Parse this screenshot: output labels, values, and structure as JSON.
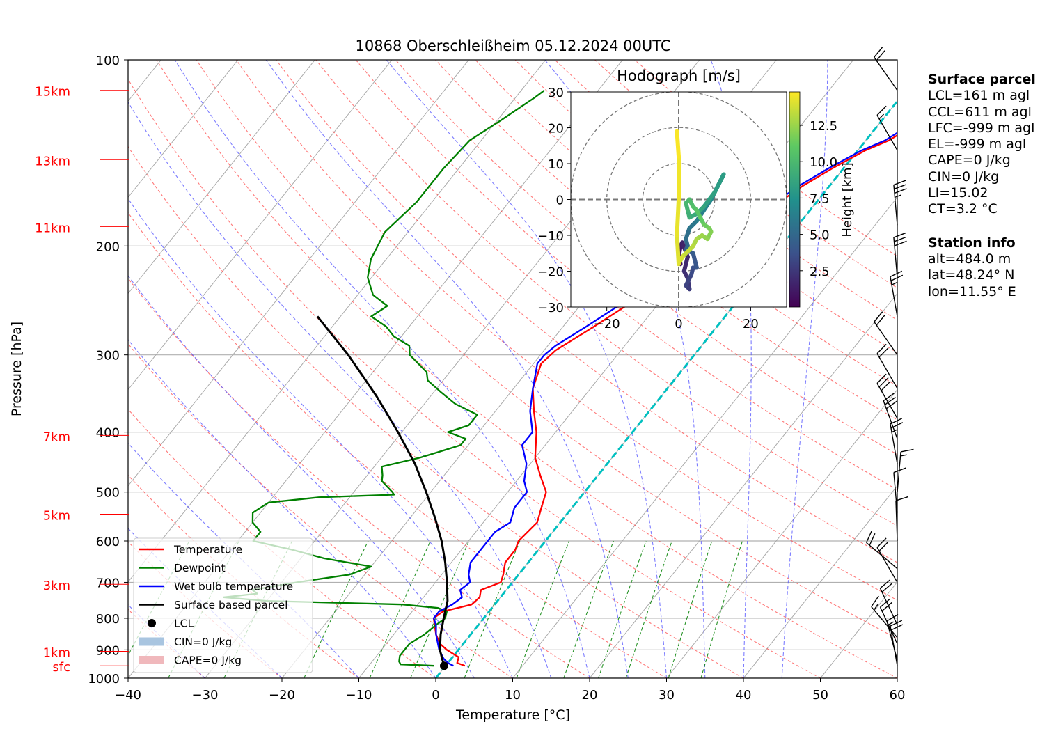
{
  "title": "10868 Oberschleißheim 05.12.2024 00UTC",
  "chart_data": {
    "type": "line",
    "subtype": "skew-T log-P diagram",
    "xlabel": "Temperature [°C]",
    "ylabel": "Pressure [hPa]",
    "xlim": [
      -40,
      60
    ],
    "ylim": [
      1000,
      100
    ],
    "y_scale": "log",
    "grid": true,
    "x_ticks": [
      "−40",
      "−30",
      "−20",
      "−10",
      "0",
      "10",
      "20",
      "30",
      "40",
      "50",
      "60"
    ],
    "y_ticks": [
      {
        "p": 100,
        "label": "100"
      },
      {
        "p": 200,
        "label": "200"
      },
      {
        "p": 300,
        "label": "300"
      },
      {
        "p": 400,
        "label": "400"
      },
      {
        "p": 500,
        "label": "500"
      },
      {
        "p": 600,
        "label": "600"
      },
      {
        "p": 700,
        "label": "700"
      },
      {
        "p": 800,
        "label": "800"
      },
      {
        "p": 900,
        "label": "900"
      },
      {
        "p": 1000,
        "label": "1000"
      }
    ],
    "height_markers": [
      {
        "p": 112,
        "label": "15km"
      },
      {
        "p": 145,
        "label": "13km"
      },
      {
        "p": 186,
        "label": "11km"
      },
      {
        "p": 405,
        "label": "7km"
      },
      {
        "p": 543,
        "label": "5km"
      },
      {
        "p": 705,
        "label": "3km"
      },
      {
        "p": 905,
        "label": "1km"
      },
      {
        "p": 955,
        "label": "sfc"
      }
    ],
    "series": [
      {
        "name": "Temperature",
        "color": "#ff0000",
        "points": [
          [
            955,
            2.5
          ],
          [
            945,
            1.2
          ],
          [
            925,
            0.8
          ],
          [
            900,
            -1.5
          ],
          [
            880,
            -3.0
          ],
          [
            850,
            -4.5
          ],
          [
            800,
            -6.5
          ],
          [
            780,
            -6.0
          ],
          [
            760,
            -3.0
          ],
          [
            740,
            -2.7
          ],
          [
            720,
            -3.3
          ],
          [
            700,
            -1.5
          ],
          [
            680,
            -2.0
          ],
          [
            650,
            -3.0
          ],
          [
            620,
            -3.0
          ],
          [
            600,
            -3.5
          ],
          [
            560,
            -3.0
          ],
          [
            530,
            -4.0
          ],
          [
            500,
            -5.0
          ],
          [
            470,
            -7.5
          ],
          [
            440,
            -10.0
          ],
          [
            400,
            -12.5
          ],
          [
            370,
            -15.0
          ],
          [
            340,
            -17.5
          ],
          [
            310,
            -19.0
          ],
          [
            295,
            -18.5
          ],
          [
            270,
            -16.0
          ],
          [
            250,
            -14.0
          ],
          [
            230,
            -12.0
          ],
          [
            210,
            -10.0
          ],
          [
            190,
            -7.5
          ],
          [
            175,
            -5.5
          ],
          [
            160,
            -3.5
          ],
          [
            150,
            -1.5
          ],
          [
            140,
            1.0
          ],
          [
            135,
            3.0
          ],
          [
            128,
            4.5
          ],
          [
            122,
            5.0
          ],
          [
            118,
            6.0
          ],
          [
            113,
            7.5
          ],
          [
            111,
            8.0
          ]
        ]
      },
      {
        "name": "Dewpoint",
        "color": "#008000",
        "points": [
          [
            955,
            -1.5
          ],
          [
            950,
            -6.0
          ],
          [
            940,
            -6.5
          ],
          [
            920,
            -7.0
          ],
          [
            900,
            -7.0
          ],
          [
            880,
            -7.0
          ],
          [
            850,
            -6.0
          ],
          [
            820,
            -5.5
          ],
          [
            800,
            -5.0
          ],
          [
            780,
            -5.5
          ],
          [
            770,
            -7.0
          ],
          [
            760,
            -12.0
          ],
          [
            750,
            -30.0
          ],
          [
            740,
            -36.0
          ],
          [
            730,
            -32.0
          ],
          [
            720,
            -33.0
          ],
          [
            700,
            -28.0
          ],
          [
            680,
            -22.0
          ],
          [
            660,
            -20.0
          ],
          [
            640,
            -27.0
          ],
          [
            620,
            -32.0
          ],
          [
            600,
            -38.0
          ],
          [
            580,
            -38.0
          ],
          [
            560,
            -40.0
          ],
          [
            540,
            -41.0
          ],
          [
            520,
            -40.0
          ],
          [
            510,
            -34.0
          ],
          [
            505,
            -24.5
          ],
          [
            500,
            -25.0
          ],
          [
            480,
            -27.5
          ],
          [
            470,
            -28.0
          ],
          [
            455,
            -29.0
          ],
          [
            440,
            -25.0
          ],
          [
            430,
            -23.0
          ],
          [
            420,
            -21.0
          ],
          [
            410,
            -21.0
          ],
          [
            400,
            -24.0
          ],
          [
            390,
            -22.0
          ],
          [
            375,
            -22.0
          ],
          [
            360,
            -26.0
          ],
          [
            345,
            -29.0
          ],
          [
            330,
            -32.0
          ],
          [
            320,
            -33.0
          ],
          [
            300,
            -37.0
          ],
          [
            290,
            -38.0
          ],
          [
            280,
            -41.0
          ],
          [
            270,
            -43.0
          ],
          [
            260,
            -46.0
          ],
          [
            250,
            -45.0
          ],
          [
            240,
            -48.0
          ],
          [
            225,
            -50.5
          ],
          [
            210,
            -52.0
          ],
          [
            190,
            -53.0
          ],
          [
            170,
            -52.0
          ],
          [
            150,
            -52.0
          ],
          [
            135,
            -51.5
          ],
          [
            125,
            -49.5
          ],
          [
            115,
            -47.5
          ],
          [
            112,
            -47.0
          ]
        ]
      },
      {
        "name": "Wet bulb temperature",
        "color": "#0000ff",
        "points": [
          [
            955,
            1.0
          ],
          [
            945,
            0.0
          ],
          [
            930,
            -1.0
          ],
          [
            900,
            -2.5
          ],
          [
            850,
            -4.5
          ],
          [
            820,
            -5.5
          ],
          [
            800,
            -6.5
          ],
          [
            780,
            -6.5
          ],
          [
            760,
            -5.5
          ],
          [
            740,
            -5.0
          ],
          [
            720,
            -6.0
          ],
          [
            700,
            -5.5
          ],
          [
            680,
            -6.5
          ],
          [
            650,
            -7.5
          ],
          [
            620,
            -7.5
          ],
          [
            600,
            -7.5
          ],
          [
            580,
            -7.5
          ],
          [
            560,
            -6.5
          ],
          [
            530,
            -7.5
          ],
          [
            500,
            -7.5
          ],
          [
            480,
            -9.0
          ],
          [
            450,
            -10.5
          ],
          [
            420,
            -13.0
          ],
          [
            400,
            -13.0
          ],
          [
            370,
            -15.5
          ],
          [
            340,
            -17.5
          ],
          [
            310,
            -19.5
          ],
          [
            300,
            -19.5
          ],
          [
            290,
            -19.0
          ],
          [
            270,
            -17.0
          ],
          [
            250,
            -15.0
          ],
          [
            230,
            -13.0
          ],
          [
            210,
            -10.5
          ],
          [
            190,
            -8.0
          ],
          [
            175,
            -6.0
          ],
          [
            160,
            -4.0
          ],
          [
            150,
            -2.0
          ],
          [
            140,
            0.5
          ],
          [
            135,
            2.5
          ],
          [
            128,
            4.0
          ],
          [
            122,
            4.5
          ],
          [
            118,
            5.5
          ],
          [
            113,
            7.0
          ],
          [
            111,
            7.5
          ]
        ]
      },
      {
        "name": "Surface based parcel",
        "color": "#000000",
        "points": [
          [
            955,
            -0.2
          ],
          [
            930,
            -1.2
          ],
          [
            900,
            -2.4
          ],
          [
            850,
            -3.9
          ],
          [
            800,
            -5.2
          ],
          [
            750,
            -6.5
          ],
          [
            700,
            -8.5
          ],
          [
            650,
            -10.8
          ],
          [
            600,
            -13.5
          ],
          [
            550,
            -16.8
          ],
          [
            500,
            -20.6
          ],
          [
            450,
            -25.0
          ],
          [
            400,
            -30.5
          ],
          [
            350,
            -37.0
          ],
          [
            300,
            -45.0
          ],
          [
            260,
            -53.0
          ]
        ]
      }
    ],
    "lcl": {
      "name": "LCL",
      "p": 955,
      "t": -0.2
    },
    "legend": {
      "position": "lower-left",
      "entries": [
        {
          "label": "Temperature",
          "color": "#ff0000",
          "kind": "line"
        },
        {
          "label": "Dewpoint",
          "color": "#008000",
          "kind": "line"
        },
        {
          "label": "Wet bulb temperature",
          "color": "#0000ff",
          "kind": "line"
        },
        {
          "label": "Surface based parcel",
          "color": "#000000",
          "kind": "line"
        },
        {
          "label": "LCL",
          "color": "#000000",
          "kind": "dot"
        },
        {
          "label": "CIN=0 J/kg",
          "color": "#a9c5e0",
          "kind": "patch"
        },
        {
          "label": "CAPE=0 J/kg",
          "color": "#f0b8bc",
          "kind": "patch"
        }
      ]
    },
    "wind_barbs": [
      {
        "p": 955,
        "dir": 350,
        "kts": 20
      },
      {
        "p": 935,
        "dir": 345,
        "kts": 18
      },
      {
        "p": 880,
        "dir": 335,
        "kts": 20
      },
      {
        "p": 860,
        "dir": 320,
        "kts": 18
      },
      {
        "p": 820,
        "dir": 335,
        "kts": 20
      },
      {
        "p": 700,
        "dir": 330,
        "kts": 20
      },
      {
        "p": 665,
        "dir": 310,
        "kts": 20
      },
      {
        "p": 600,
        "dir": 358,
        "kts": 10
      },
      {
        "p": 540,
        "dir": 355,
        "kts": 10
      },
      {
        "p": 500,
        "dir": 5,
        "kts": 15
      },
      {
        "p": 450,
        "dir": 350,
        "kts": 25
      },
      {
        "p": 410,
        "dir": 340,
        "kts": 30
      },
      {
        "p": 380,
        "dir": 330,
        "kts": 30
      },
      {
        "p": 340,
        "dir": 330,
        "kts": 20
      },
      {
        "p": 300,
        "dir": 325,
        "kts": 20
      },
      {
        "p": 260,
        "dir": 350,
        "kts": 25
      },
      {
        "p": 225,
        "dir": 355,
        "kts": 30
      },
      {
        "p": 185,
        "dir": 355,
        "kts": 35
      },
      {
        "p": 140,
        "dir": 330,
        "kts": 15
      },
      {
        "p": 112,
        "dir": 325,
        "kts": 20
      }
    ],
    "hodograph": {
      "title": "Hodograph [m/s]",
      "xlim": [
        -30,
        30
      ],
      "ylim": [
        -30,
        30
      ],
      "x_ticks": [
        "−20",
        "0",
        "20"
      ],
      "y_ticks": [
        "30",
        "20",
        "10",
        "0",
        "−10",
        "−20",
        "−30"
      ],
      "rings": [
        10,
        20,
        30
      ],
      "colorbar": {
        "label": "Height [km]",
        "ticks": [
          "2.5",
          "5.0",
          "7.5",
          "10.0",
          "12.5"
        ],
        "range": [
          0,
          14.8
        ]
      },
      "points": [
        [
          0.5,
          -18,
          0.3
        ],
        [
          0.0,
          -16,
          0.6
        ],
        [
          0.5,
          -13,
          0.9
        ],
        [
          1.0,
          -12,
          1.2
        ],
        [
          2.5,
          -16,
          1.5
        ],
        [
          1.5,
          -20,
          1.8
        ],
        [
          2.5,
          -22,
          2.1
        ],
        [
          3.0,
          -25,
          2.4
        ],
        [
          2.0,
          -24,
          2.7
        ],
        [
          3.5,
          -21,
          3.0
        ],
        [
          4.0,
          -19,
          3.4
        ],
        [
          5.0,
          -19,
          3.7
        ],
        [
          4.0,
          -15,
          4.0
        ],
        [
          2.0,
          -14,
          4.3
        ],
        [
          2.5,
          -13,
          4.6
        ],
        [
          2.0,
          -11,
          5.0
        ],
        [
          3.0,
          -8,
          5.4
        ],
        [
          5.0,
          -6,
          5.8
        ],
        [
          7.0,
          -3,
          6.2
        ],
        [
          9.0,
          0,
          6.6
        ],
        [
          10.5,
          3,
          7.0
        ],
        [
          12.0,
          6,
          7.4
        ],
        [
          12.5,
          7,
          7.8
        ],
        [
          10.0,
          2,
          8.1
        ],
        [
          7.0,
          -2,
          8.4
        ],
        [
          5.0,
          -4,
          8.7
        ],
        [
          3.0,
          -5,
          9.0
        ],
        [
          2.5,
          -3,
          9.3
        ],
        [
          2.0,
          -1,
          9.6
        ],
        [
          3.0,
          0,
          9.9
        ],
        [
          4.0,
          -2,
          10.2
        ],
        [
          5.0,
          -3,
          10.5
        ],
        [
          6.0,
          -5,
          10.8
        ],
        [
          7.0,
          -7,
          11.1
        ],
        [
          8.5,
          -8,
          11.4
        ],
        [
          9.0,
          -9,
          11.7
        ],
        [
          8.0,
          -11,
          12.0
        ],
        [
          6.5,
          -10,
          12.3
        ],
        [
          5.0,
          -11,
          12.6
        ],
        [
          4.0,
          -13,
          12.9
        ],
        [
          3.0,
          -14,
          13.2
        ],
        [
          1.0,
          -16,
          13.5
        ],
        [
          0.0,
          -18,
          13.8
        ],
        [
          -0.5,
          -10,
          14.1
        ],
        [
          0.0,
          0,
          14.3
        ],
        [
          0.0,
          12,
          14.5
        ],
        [
          -0.5,
          19,
          14.7
        ]
      ]
    }
  },
  "info": {
    "surface_title": "Surface parcel",
    "lines": [
      "LCL=161 m agl",
      "CCL=611 m agl",
      "LFC=-999 m agl",
      "EL=-999 m agl",
      "CAPE=0 J/kg",
      "CIN=0 J/kg",
      "LI=15.02",
      "CT=3.2 °C"
    ],
    "station_title": "Station info",
    "station_lines": [
      "alt=484.0 m",
      "lat=48.24° N",
      "lon=11.55° E"
    ]
  }
}
